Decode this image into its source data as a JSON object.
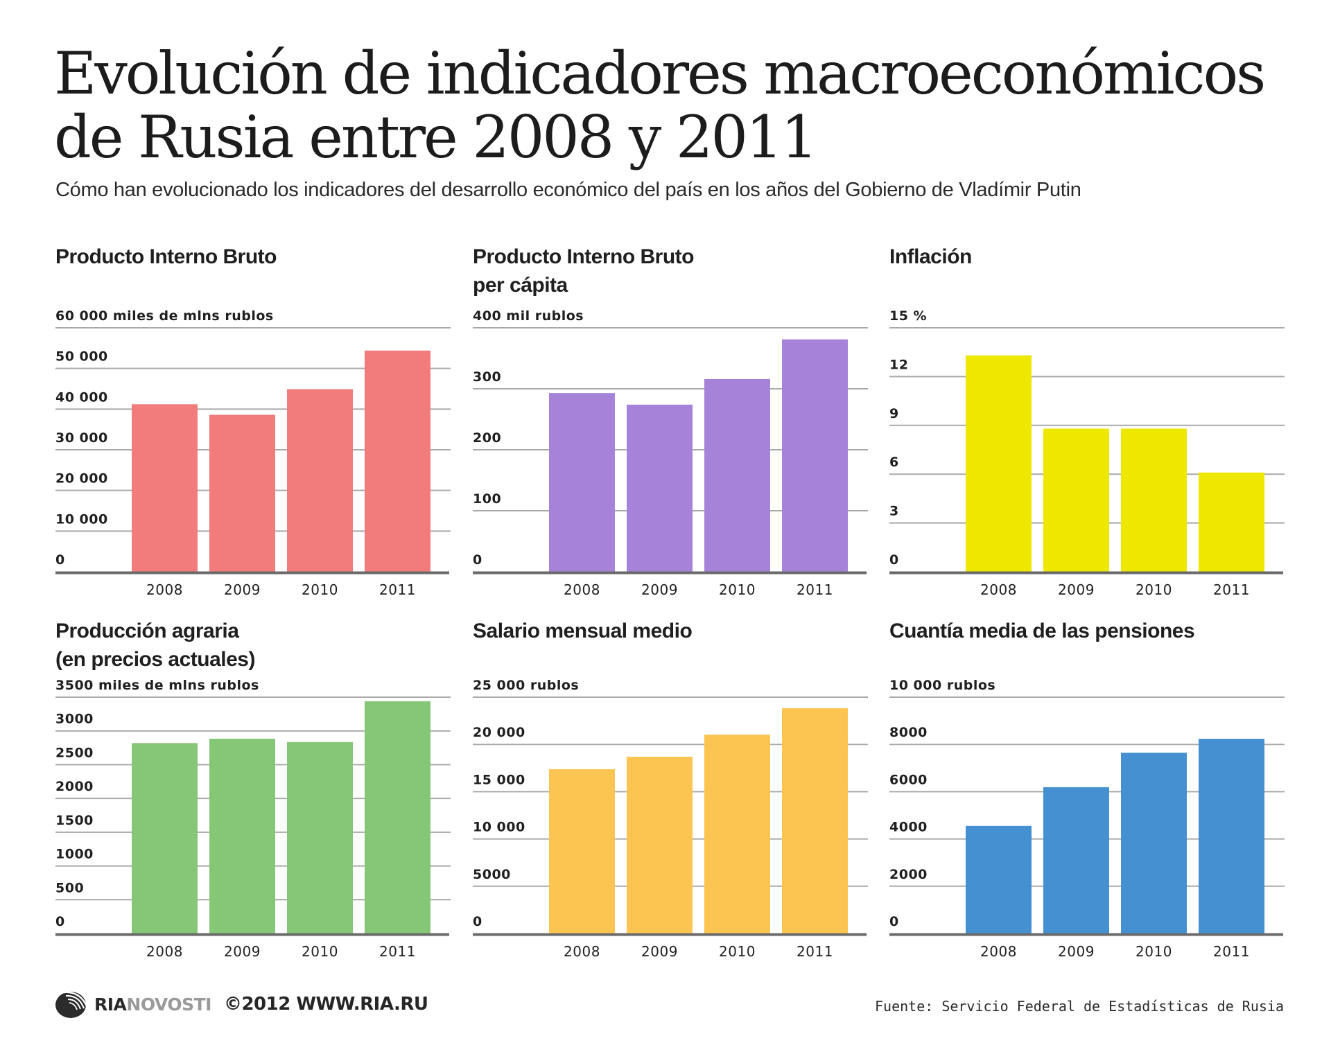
{
  "header": {
    "title": "Evolución de indicadores macroeconómicos de Rusia entre 2008 y 2011",
    "subtitle": "Cómo han evolucionado los indicadores del desarrollo económico del país en los años del Gobierno de Vladímir Putin"
  },
  "chart_data": [
    {
      "type": "bar",
      "title": "Producto Interno Bruto",
      "ylabel": "miles de mlns rublos",
      "top_label": "60 000 miles de mlns rublos",
      "categories": [
        "2008",
        "2009",
        "2010",
        "2011"
      ],
      "values": [
        41200,
        38600,
        44900,
        54400
      ],
      "ylim": [
        0,
        60000
      ],
      "yticks": [
        0,
        10000,
        20000,
        30000,
        40000,
        50000,
        60000
      ],
      "ytick_labels": [
        "0",
        "10 000",
        "20 000",
        "30 000",
        "40 000",
        "50 000",
        "60 000 miles de mlns rublos"
      ],
      "color": "#f27b7b",
      "grid": true
    },
    {
      "type": "bar",
      "title": "Producto Interno Bruto\nper cápita",
      "ylabel": "mil rublos",
      "top_label": "400 mil rublos",
      "categories": [
        "2008",
        "2009",
        "2010",
        "2011"
      ],
      "values": [
        293,
        274,
        316,
        381
      ],
      "ylim": [
        0,
        400
      ],
      "yticks": [
        0,
        100,
        200,
        300,
        400
      ],
      "ytick_labels": [
        "0",
        "100",
        "200",
        "300",
        "400 mil rublos"
      ],
      "color": "#a683d8",
      "grid": true
    },
    {
      "type": "bar",
      "title": "Inflación",
      "ylabel": "%",
      "top_label": "15 %",
      "categories": [
        "2008",
        "2009",
        "2010",
        "2011"
      ],
      "values": [
        13.3,
        8.8,
        8.8,
        6.1
      ],
      "ylim": [
        0,
        15
      ],
      "yticks": [
        0,
        3,
        6,
        9,
        12,
        15
      ],
      "ytick_labels": [
        "0",
        "3",
        "6",
        "9",
        "12",
        "15 %"
      ],
      "color": "#eee800",
      "grid": true
    },
    {
      "type": "bar",
      "title": "Producción agraria\n(en precios actuales)",
      "ylabel": "miles de mlns rublos",
      "top_label": "3500 miles de mlns rublos",
      "categories": [
        "2008",
        "2009",
        "2010",
        "2011"
      ],
      "values": [
        2820,
        2885,
        2835,
        3440
      ],
      "ylim": [
        0,
        3500
      ],
      "yticks": [
        0,
        500,
        1000,
        1500,
        2000,
        2500,
        3000,
        3500
      ],
      "ytick_labels": [
        "0",
        "500",
        "1000",
        "1500",
        "2000",
        "2500",
        "3000",
        "3500 miles de mlns rublos"
      ],
      "color": "#85c777",
      "grid": true
    },
    {
      "type": "bar",
      "title": "Salario mensual medio",
      "ylabel": "rublos",
      "top_label": "25 000 rublos",
      "categories": [
        "2008",
        "2009",
        "2010",
        "2011"
      ],
      "values": [
        17380,
        18700,
        21040,
        23830
      ],
      "ylim": [
        0,
        25000
      ],
      "yticks": [
        0,
        5000,
        10000,
        15000,
        20000,
        25000
      ],
      "ytick_labels": [
        "0",
        "5000",
        "10 000",
        "15 000",
        "20 000",
        "25 000 rublos"
      ],
      "color": "#fcc551",
      "grid": true
    },
    {
      "type": "bar",
      "title": "Cuantía media de las pensiones",
      "ylabel": "rublos",
      "top_label": "10 000 rublos",
      "categories": [
        "2008",
        "2009",
        "2010",
        "2011"
      ],
      "values": [
        4550,
        6190,
        7650,
        8240
      ],
      "ylim": [
        0,
        10000
      ],
      "yticks": [
        0,
        2000,
        4000,
        6000,
        8000,
        10000
      ],
      "ytick_labels": [
        "0",
        "2000",
        "4000",
        "6000",
        "8000",
        "10 000 rublos"
      ],
      "color": "#4490d0",
      "grid": true
    }
  ],
  "footer": {
    "logo_ria": "RIA",
    "logo_novosti": "NOVOSTI",
    "copyright": "©2012 WWW.RIA.RU",
    "source": "Fuente: Servicio Federal de Estadísticas de Rusia"
  },
  "icons": {
    "logo": "ria-novosti-globe-icon"
  },
  "colors": {
    "gridline": "#a9a9a9",
    "baseline": "#6b6b6b"
  }
}
